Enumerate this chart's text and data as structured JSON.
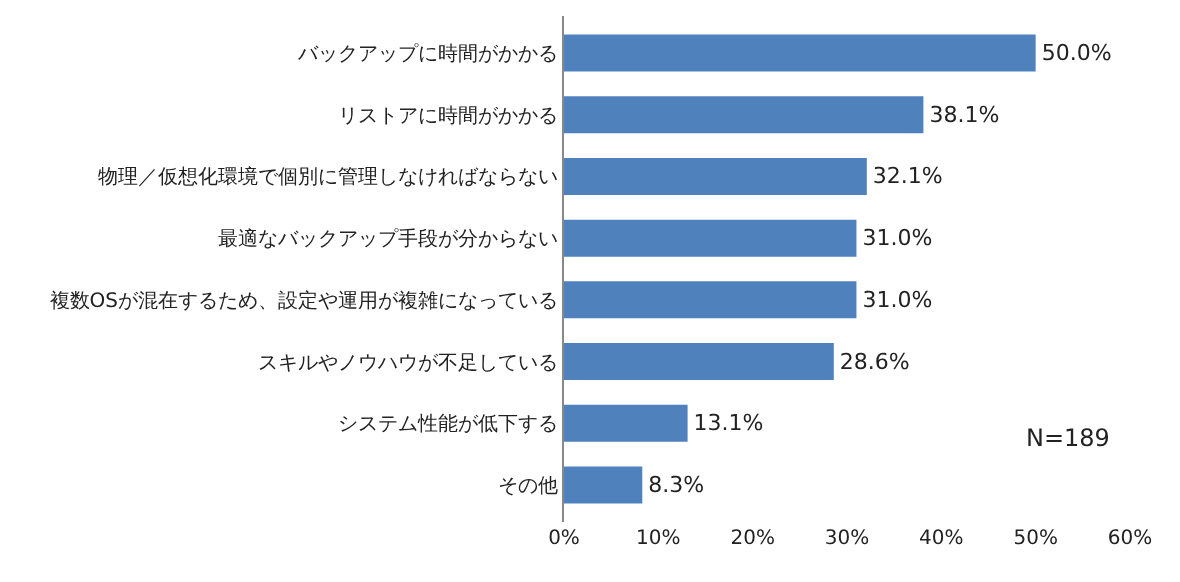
{
  "chart_data": {
    "type": "bar",
    "orientation": "horizontal",
    "categories": [
      "バックアップに時間がかかる",
      "リストアに時間がかかる",
      "物理／仮想化環境で個別に管理しなければならない",
      "最適なバックアップ手段が分からない",
      "複数OSが混在するため、設定や運用が複雑になっている",
      "スキルやノウハウが不足している",
      "システム性能が低下する",
      "その他"
    ],
    "values": [
      50.0,
      38.1,
      32.1,
      31.0,
      31.0,
      28.6,
      13.1,
      8.3
    ],
    "value_labels": [
      "50.0%",
      "38.1%",
      "32.1%",
      "31.0%",
      "31.0%",
      "28.6%",
      "13.1%",
      "8.3%"
    ],
    "color": "#4f81bd",
    "xlim": [
      0,
      60
    ],
    "xticks": [
      {
        "value": 0,
        "label": "0%"
      },
      {
        "value": 10,
        "label": "10%"
      },
      {
        "value": 20,
        "label": "20%"
      },
      {
        "value": 30,
        "label": "30%"
      },
      {
        "value": 40,
        "label": "40%"
      },
      {
        "value": 50,
        "label": "50%"
      },
      {
        "value": 60,
        "label": "60%"
      }
    ],
    "grid": false,
    "legend": false,
    "annotations": [
      "N=189"
    ]
  }
}
